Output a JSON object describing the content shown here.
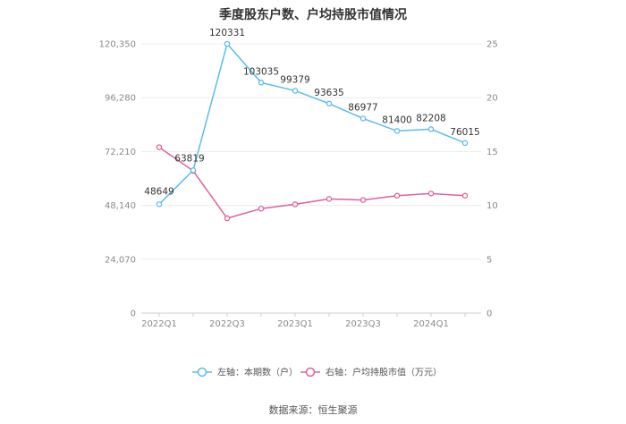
{
  "title": "季度股东户数、户均持股市值情况",
  "source": "数据来源：恒生聚源",
  "colors": {
    "series_left": "#5bbcec",
    "series_right": "#e0609e"
  },
  "chart_data": {
    "type": "line",
    "x": [
      "2022Q1",
      "2022Q2",
      "2022Q3",
      "2022Q4",
      "2023Q1",
      "2023Q2",
      "2023Q3",
      "2023Q4",
      "2024Q1",
      "2024Q2"
    ],
    "x_tick_labels": [
      "2022Q1",
      "2022Q3",
      "2023Q1",
      "2023Q3",
      "2024Q1"
    ],
    "y_left": {
      "ticks": [
        "0",
        "24,070",
        "48,140",
        "72,210",
        "96,280",
        "120,350"
      ],
      "range": [
        0,
        120350
      ]
    },
    "y_right": {
      "ticks": [
        "0",
        "5",
        "10",
        "15",
        "20",
        "25"
      ],
      "range": [
        0,
        25
      ]
    },
    "grid": true,
    "legend_position": "bottom",
    "series": [
      {
        "name": "左轴：本期数（户）",
        "axis": "left",
        "values": [
          48649,
          63819,
          120331,
          103035,
          99379,
          93635,
          86977,
          81400,
          82208,
          76015
        ],
        "labels": [
          "48649",
          "63819",
          "120331",
          "103035",
          "99379",
          "93635",
          "86977",
          "81400",
          "82208",
          "76015"
        ]
      },
      {
        "name": "右轴：户均持股市值（万元）",
        "axis": "right",
        "values": [
          15.4,
          13.2,
          8.8,
          9.7,
          10.1,
          10.6,
          10.5,
          10.9,
          11.1,
          10.9
        ]
      }
    ]
  }
}
